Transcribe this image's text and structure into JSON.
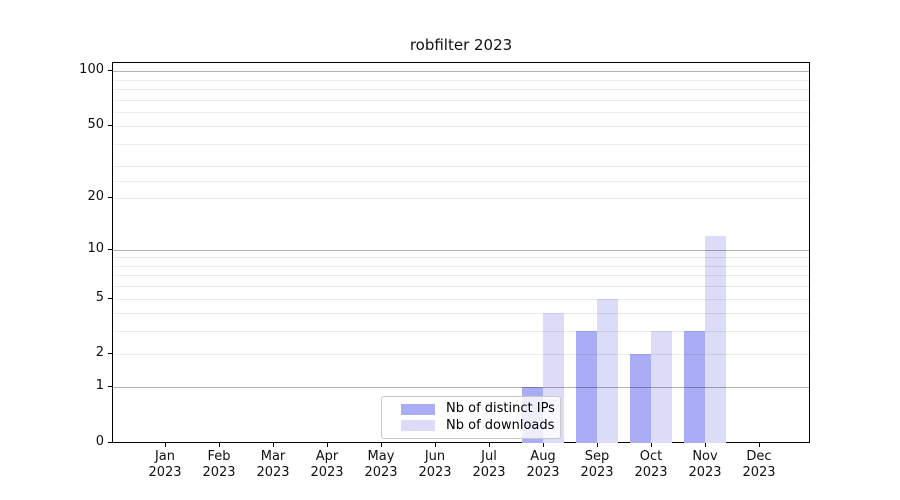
{
  "figure": {
    "background": "#ffffff",
    "plot_border_color": "#000000"
  },
  "chart_data": {
    "type": "bar",
    "title": "robfilter 2023",
    "categories": [
      "Jan 2023",
      "Feb 2023",
      "Mar 2023",
      "Apr 2023",
      "May 2023",
      "Jun 2023",
      "Jul 2023",
      "Aug 2023",
      "Sep 2023",
      "Oct 2023",
      "Nov 2023",
      "Dec 2023"
    ],
    "x_tick_months": [
      "Jan",
      "Feb",
      "Mar",
      "Apr",
      "May",
      "Jun",
      "Jul",
      "Aug",
      "Sep",
      "Oct",
      "Nov",
      "Dec"
    ],
    "x_tick_year": "2023",
    "series": [
      {
        "name": "Nb of distinct IPs",
        "color": "#abacf6",
        "values": [
          0,
          0,
          0,
          0,
          0,
          0,
          0,
          1,
          3,
          2,
          3,
          0
        ]
      },
      {
        "name": "Nb of downloads",
        "color": "#dcdcf9",
        "values": [
          0,
          0,
          0,
          0,
          0,
          0,
          0,
          4,
          5,
          3,
          12,
          0
        ]
      }
    ],
    "yaxis": {
      "scale": "log1p",
      "tick_values": [
        0,
        1,
        2,
        5,
        10,
        20,
        50,
        100
      ],
      "tick_labels": [
        "0",
        "1",
        "2",
        "5",
        "10",
        "20",
        "50",
        "100"
      ],
      "range_max": 130
    },
    "grid": {
      "major_values": [
        1,
        10,
        100
      ],
      "minor_values": [
        2,
        3,
        4,
        5,
        6,
        7,
        8,
        9,
        20,
        25,
        30,
        40,
        50,
        60,
        70,
        80,
        90
      ],
      "major_color": "rgba(0,0,0,0.30)",
      "minor_color": "rgba(0,0,0,0.08)"
    },
    "legend": {
      "position": "bottom-center",
      "items": [
        {
          "label": "Nb of distinct IPs",
          "color": "#abacf6"
        },
        {
          "label": "Nb of downloads",
          "color": "#dcdcf9"
        }
      ]
    }
  }
}
